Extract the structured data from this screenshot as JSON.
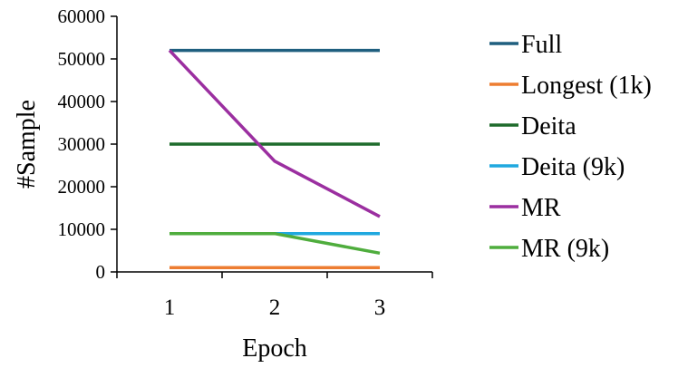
{
  "chart_data": {
    "type": "line",
    "title": "",
    "xlabel": "Epoch",
    "ylabel": "#Sample",
    "x": [
      1,
      2,
      3
    ],
    "ylim": [
      0,
      60000
    ],
    "yticks": [
      0,
      10000,
      20000,
      30000,
      40000,
      50000,
      60000
    ],
    "grid": false,
    "legend_position": "right",
    "series": [
      {
        "name": "Full",
        "color": "#1f5f7f",
        "values": [
          52000,
          52000,
          52000
        ]
      },
      {
        "name": "Longest (1k)",
        "color": "#ed7d31",
        "values": [
          1000,
          1000,
          1000
        ]
      },
      {
        "name": "Deita",
        "color": "#1e6b2c",
        "values": [
          30000,
          30000,
          30000
        ]
      },
      {
        "name": "Deita (9k)",
        "color": "#1fa8df",
        "values": [
          9000,
          9000,
          9000
        ]
      },
      {
        "name": "MR",
        "color": "#9b2fa0",
        "values": [
          52000,
          26000,
          13000
        ]
      },
      {
        "name": "MR (9k)",
        "color": "#4fad3d",
        "values": [
          9000,
          9000,
          4400
        ]
      }
    ]
  }
}
